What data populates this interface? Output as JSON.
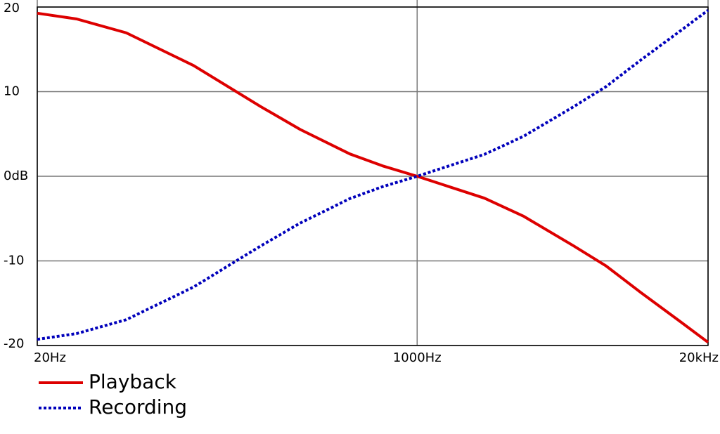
{
  "chart_data": {
    "type": "line",
    "xscale": "log",
    "grid": true,
    "legend": "bottom-left",
    "x": [
      20,
      30,
      50,
      100,
      200,
      300,
      500,
      700,
      1000,
      2000,
      3000,
      5000,
      7000,
      10000,
      15000,
      20000
    ],
    "series": [
      {
        "name": "Playback",
        "color": "#dd0000",
        "style": "solid",
        "values": [
          19.27,
          18.59,
          16.95,
          13.09,
          8.22,
          5.53,
          2.64,
          1.23,
          0,
          -2.59,
          -4.74,
          -8.21,
          -10.6,
          -13.73,
          -17.16,
          -19.62
        ]
      },
      {
        "name": "Recording",
        "color": "#0000bb",
        "style": "dotted",
        "values": [
          -19.27,
          -18.59,
          -16.95,
          -13.09,
          -8.22,
          -5.53,
          -2.64,
          -1.23,
          0,
          2.59,
          4.74,
          8.21,
          10.6,
          13.73,
          17.16,
          19.62
        ]
      }
    ],
    "xlim": [
      20,
      20000
    ],
    "xticks": [
      {
        "value": 20,
        "label": "20Hz"
      },
      {
        "value": 1000,
        "label": "1000Hz"
      },
      {
        "value": 20000,
        "label": "20kHz"
      }
    ],
    "ylim": [
      -20,
      20
    ],
    "yticks": [
      20,
      10,
      {
        "value": 0,
        "label": "0dB"
      },
      -10,
      -20
    ]
  }
}
